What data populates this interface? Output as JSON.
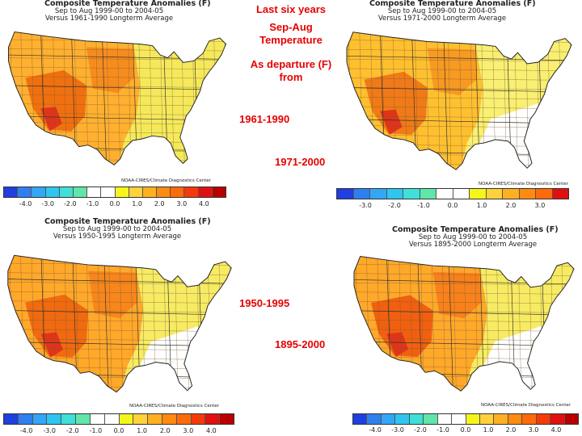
{
  "overlay": {
    "heading": "Last six years",
    "subheading": "Sep-Aug\nTemperature",
    "as_departure": "As departure (F)\nfrom",
    "period_a": "1961-1990",
    "period_b": "1971-2000",
    "period_c": "1950-1995",
    "period_d": "1895-2000"
  },
  "panels": [
    {
      "title": "Composite Temperature Anomalies (F)",
      "subtitle": "Sep to Aug 1999-00 to 2004-05",
      "baseline": "Versus 1961-1990 Longterm Average",
      "credit": "NOAA-CIRES/Climate Diagnostics Center",
      "ticks": [
        "-4.0",
        "-3.0",
        "-2.0",
        "-1.0",
        "0.0",
        "1.0",
        "2.0",
        "3.0",
        "4.0"
      ],
      "colors": [
        "#1f3fe0",
        "#2f7fef",
        "#33a6f5",
        "#2ec6f0",
        "#3ee0d8",
        "#5fe6a8",
        "#ffffff",
        "#ffffff",
        "#f5f51a",
        "#ffd23a",
        "#ffb020",
        "#ff8a10",
        "#ff6a0a",
        "#f53a08",
        "#e01010",
        "#b80000"
      ],
      "map_fill": "#ffb030",
      "hot_fill": "#f07010",
      "east_fill": "#f4f060",
      "white_southeast": false
    },
    {
      "title": "Composite Temperature Anomalies (F)",
      "subtitle": "Sep to Aug 1999-00 to 2004-05",
      "baseline": "Versus 1971-2000 Longterm Average",
      "credit": "NOAA-CIRES/Climate Diagnostics Center",
      "ticks": [
        "-3.0",
        "-2.0",
        "-1.0",
        "0.0",
        "1.0",
        "2.0",
        "3.0"
      ],
      "colors": [
        "#1f3fe0",
        "#2f7fef",
        "#33a6f5",
        "#2ec6f0",
        "#3ee0d8",
        "#5fe6a8",
        "#ffffff",
        "#ffffff",
        "#f5f51a",
        "#ffd23a",
        "#ffb020",
        "#ff8a10",
        "#ff6a0a",
        "#e01010"
      ],
      "map_fill": "#ffc030",
      "hot_fill": "#f07a18",
      "east_fill": "#f8f47a",
      "white_southeast": true
    },
    {
      "title": "Composite Temperature Anomalies (F)",
      "subtitle": "Sep to Aug 1999-00 to 2004-05",
      "baseline": "Versus 1950-1995 Longterm Average",
      "credit": "NOAA-CIRES/Climate Diagnostics Center",
      "ticks": [
        "-4.0",
        "-3.0",
        "-2.0",
        "-1.0",
        "0.0",
        "1.0",
        "2.0",
        "3.0",
        "4.0"
      ],
      "colors": [
        "#1f3fe0",
        "#2f7fef",
        "#33a6f5",
        "#2ec6f0",
        "#3ee0d8",
        "#5fe6a8",
        "#ffffff",
        "#ffffff",
        "#f5f51a",
        "#ffd23a",
        "#ffb020",
        "#ff8a10",
        "#ff6a0a",
        "#f53a08",
        "#e01010",
        "#b80000"
      ],
      "map_fill": "#ffa82a",
      "hot_fill": "#f06a10",
      "east_fill": "#f6f26a",
      "white_southeast": true
    },
    {
      "title": "Composite Temperature Anomalies (F)",
      "subtitle": "Sep to Aug 1999-00 to 2004-05",
      "baseline": "Versus 1895-2000 Longterm Average",
      "credit": "NOAA-CIRES/Climate Diagnostics Center",
      "ticks": [
        "-4.0",
        "-3.0",
        "-2.0",
        "-1.0",
        "0.0",
        "1.0",
        "2.0",
        "3.0",
        "4.0"
      ],
      "colors": [
        "#1f3fe0",
        "#2f7fef",
        "#33a6f5",
        "#2ec6f0",
        "#3ee0d8",
        "#5fe6a8",
        "#ffffff",
        "#ffffff",
        "#f5f51a",
        "#ffd23a",
        "#ffb020",
        "#ff8a10",
        "#ff6a0a",
        "#f53a08",
        "#e01010",
        "#b80000"
      ],
      "map_fill": "#ffa82a",
      "hot_fill": "#f06010",
      "east_fill": "#f6f26a",
      "white_southeast": true
    }
  ]
}
